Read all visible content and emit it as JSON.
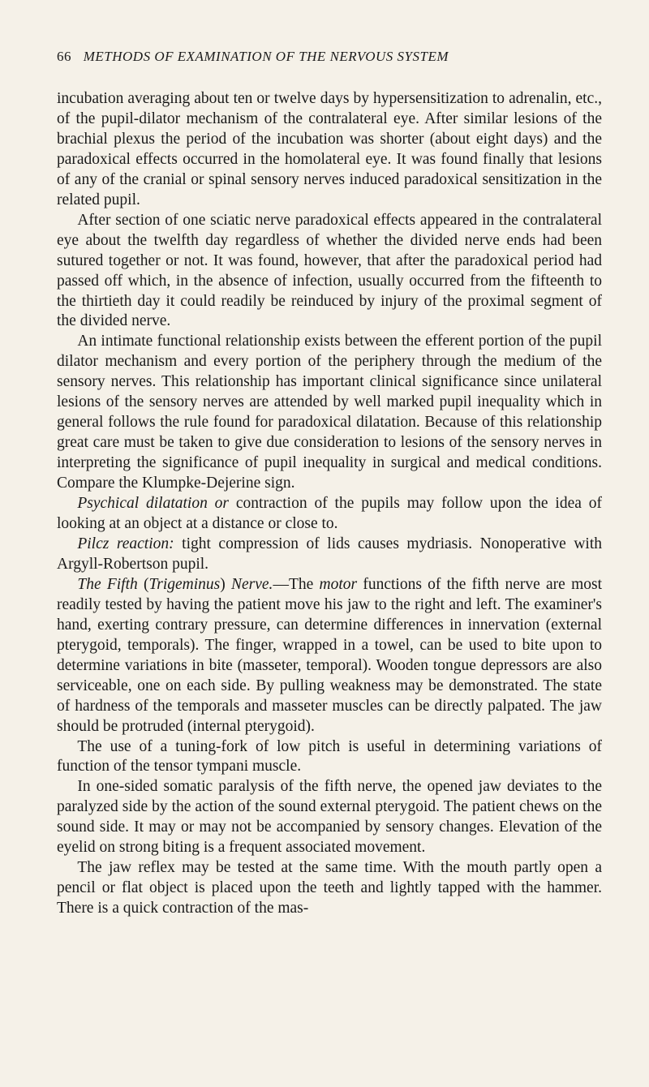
{
  "header": {
    "page_number": "66",
    "title": "METHODS OF EXAMINATION OF THE NERVOUS SYSTEM"
  },
  "paragraphs": {
    "p1": "incubation averaging about ten or twelve days by hypersensitization to adrenalin, etc., of the pupil-dilator mechanism of the contralateral eye. After similar lesions of the brachial plexus the period of the incu­bation was shorter (about eight days) and the paradoxical effects occurred in the homolateral eye. It was found finally that lesions of any of the cranial or spinal sensory nerves induced paradoxical sensi­tization in the related pupil.",
    "p2": "After section of one sciatic nerve paradoxical effects appeared in the contralateral eye about the twelfth day regardless of whether the divided nerve ends had been sutured together or not. It was found, however, that after the paradoxical period had passed off which, in the absence of infection, usually occurred from the fifteenth to the thirtieth day it could readily be reinduced by injury of the proximal segment of the divided nerve.",
    "p3": "An intimate functional relationship exists between the efferent portion of the pupil dilator mechanism and every portion of the peri­phery through the medium of the sensory nerves. This relationship has important clinical significance since unilateral lesions of the sensory nerves are attended by well marked pupil inequality which in general follows the rule found for paradoxical dilatation. Because of this rela­tionship great care must be taken to give due consideration to lesions of the sensory nerves in interpreting the significance of pupil inequality in surgical and medical conditions. Compare the Klumpke-Dejerine sign.",
    "p4_em": "Psychical dilatation or",
    "p4_rest": " contraction of the pupils may follow upon the idea of looking at an object at a distance or close to.",
    "p5_em": "Pilcz reaction:",
    "p5_rest": " tight compression of lids causes mydriasis. Non­operative with Argyll-Robertson pupil.",
    "p6_em1": "The Fifth",
    "p6_paren_open": " (",
    "p6_em2": "Trigeminus",
    "p6_paren_close": ") ",
    "p6_em3": "Nerve.",
    "p6_dash": "—The ",
    "p6_em4": "motor",
    "p6_rest": " functions of the fifth nerve are most readily tested by having the patient move his jaw to the right and left. The examiner's hand, exerting contrary pressure, can determine differences in innervation (external pterygoid, tem­porals). The finger, wrapped in a towel, can be used to bite upon to determine variations in bite (masseter, temporal). Wooden tongue depressors are also serviceable, one on each side. By pulling weakness may be demonstrated. The state of hardness of the temporals and masseter muscles can be directly palpated. The jaw should be protruded (internal pterygoid).",
    "p7": "The use of a tuning-fork of low pitch is useful in determining varia­tions of function of the tensor tympani muscle.",
    "p8": "In one-sided somatic paralysis of the fifth nerve, the opened jaw deviates to the paralyzed side by the action of the sound external pterygoid. The patient chews on the sound side. It may or may not be accompanied by sensory changes. Elevation of the eyelid on strong biting is a frequent associated movement.",
    "p9": "The jaw reflex may be tested at the same time. With the mouth partly open a pencil or flat object is placed upon the teeth and lightly tapped with the hammer. There is a quick contraction of the mas-"
  }
}
